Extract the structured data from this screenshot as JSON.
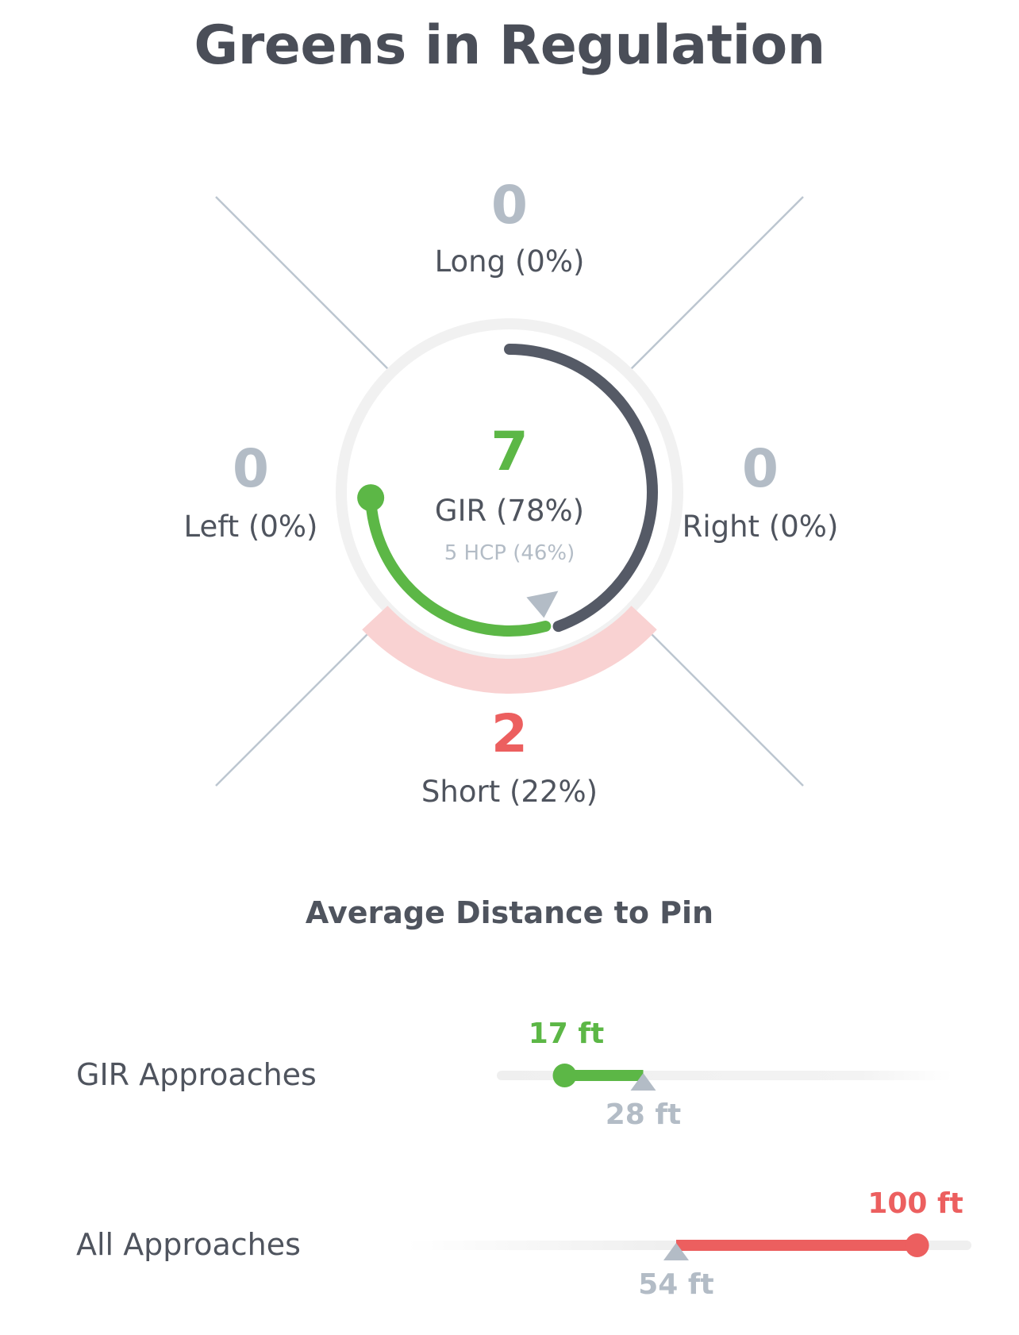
{
  "title": "Greens in Regulation",
  "directions": {
    "long": {
      "count": "0",
      "label": "Long (0%)"
    },
    "left": {
      "count": "0",
      "label": "Left (0%)"
    },
    "right": {
      "count": "0",
      "label": "Right (0%)"
    },
    "short": {
      "count": "2",
      "label": "Short (22%)"
    }
  },
  "gir": {
    "count": "7",
    "label": "GIR (78%)",
    "hcp_label": "5 HCP (46%)",
    "gir_fraction": 0.78,
    "hcp_fraction": 0.46
  },
  "distance": {
    "title": "Average Distance to Pin",
    "rows": [
      {
        "label": "GIR Approaches",
        "value_label": "17 ft",
        "benchmark_label": "28 ft",
        "value_ft": 17,
        "benchmark_ft": 28
      },
      {
        "label": "All Approaches",
        "value_label": "100 ft",
        "benchmark_label": "54 ft",
        "value_ft": 100,
        "benchmark_ft": 54
      }
    ]
  },
  "colors": {
    "green": "#5cb746",
    "red": "#ec5f5f",
    "pink": "#f9d2d2",
    "dark": "#555a66",
    "gray": "#b3bcc6",
    "track": "#f1f1f1"
  }
}
